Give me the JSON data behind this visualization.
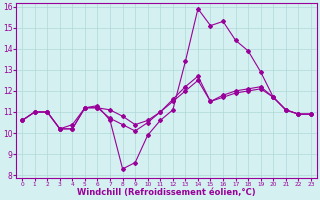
{
  "title": "",
  "xlabel": "Windchill (Refroidissement éolien,°C)",
  "ylabel": "",
  "background_color": "#d4f0f0",
  "line_color": "#990099",
  "x_values": [
    0,
    1,
    2,
    3,
    4,
    5,
    6,
    7,
    8,
    9,
    10,
    11,
    12,
    13,
    14,
    15,
    16,
    17,
    18,
    19,
    20,
    21,
    22,
    23
  ],
  "line1": [
    10.6,
    11.0,
    11.0,
    10.2,
    10.2,
    11.2,
    11.3,
    10.6,
    8.3,
    8.6,
    9.9,
    10.6,
    11.1,
    13.4,
    15.9,
    15.1,
    15.3,
    14.4,
    13.9,
    12.9,
    11.7,
    11.1,
    10.9,
    10.9
  ],
  "line2": [
    10.6,
    11.0,
    11.0,
    10.2,
    10.2,
    11.2,
    11.2,
    10.7,
    10.4,
    10.1,
    10.5,
    11.0,
    11.6,
    12.2,
    12.7,
    11.5,
    11.8,
    12.0,
    12.1,
    12.2,
    11.7,
    11.1,
    10.9,
    10.9
  ],
  "line3": [
    10.6,
    11.0,
    11.0,
    10.2,
    10.4,
    11.2,
    11.2,
    11.1,
    10.8,
    10.4,
    10.6,
    11.0,
    11.5,
    12.0,
    12.5,
    11.5,
    11.7,
    11.9,
    12.0,
    12.1,
    11.7,
    11.1,
    10.9,
    10.9
  ],
  "ylim": [
    8,
    16
  ],
  "xlim": [
    -0.5,
    23.5
  ],
  "yticks": [
    8,
    9,
    10,
    11,
    12,
    13,
    14,
    15,
    16
  ],
  "xticks": [
    0,
    1,
    2,
    3,
    4,
    5,
    6,
    7,
    8,
    9,
    10,
    11,
    12,
    13,
    14,
    15,
    16,
    17,
    18,
    19,
    20,
    21,
    22,
    23
  ],
  "tick_fontsize": 5.5,
  "xlabel_fontsize": 6.0,
  "grid_color": "#b0d8d8",
  "spine_color": "#990099",
  "marker_size": 2.0
}
